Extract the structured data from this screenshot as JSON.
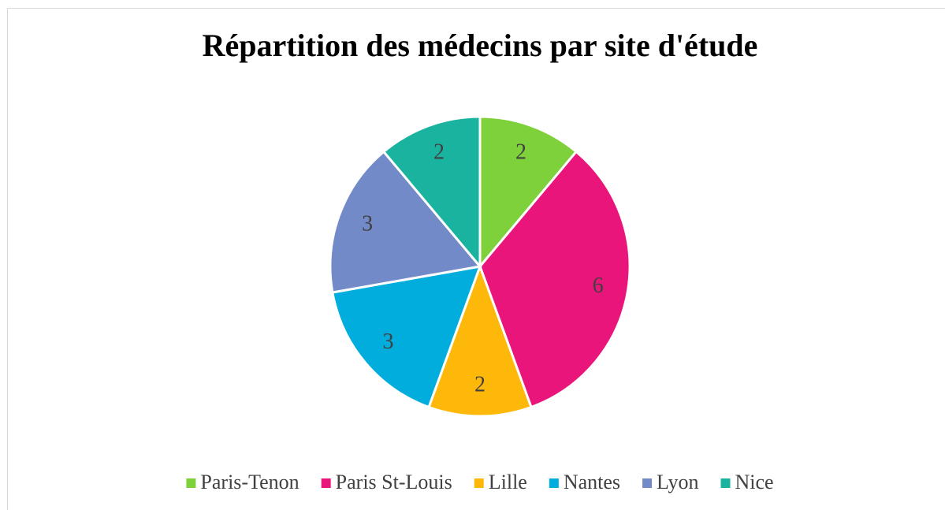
{
  "chart_data": {
    "type": "pie",
    "title": "Répartition des médecins par site d'étude",
    "categories": [
      "Paris-Tenon",
      "Paris St-Louis",
      "Lille",
      "Nantes",
      "Lyon",
      "Nice"
    ],
    "values": [
      2,
      6,
      2,
      3,
      3,
      2
    ],
    "colors": [
      "#7fd13b",
      "#ea157a",
      "#feb80a",
      "#00addc",
      "#738ac8",
      "#1ab39f"
    ],
    "legend": "bottom"
  }
}
